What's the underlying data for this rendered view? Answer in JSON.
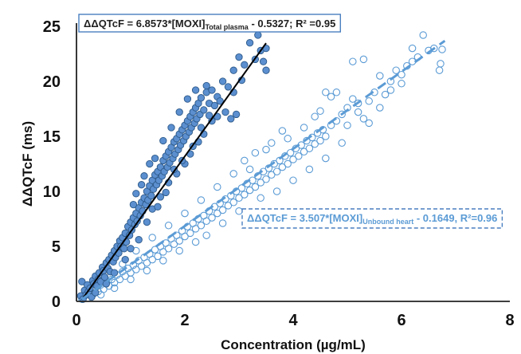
{
  "chart_data": {
    "type": "scatter",
    "xlabel": "Concentration (µg/mL)",
    "ylabel": "ΔΔQTcF (ms)",
    "xlim": [
      0,
      8
    ],
    "ylim": [
      0,
      25
    ],
    "x_ticks": [
      0,
      2,
      4,
      6,
      8
    ],
    "y_ticks": [
      0,
      5,
      10,
      15,
      20,
      25
    ],
    "grid": false,
    "annotations": [
      {
        "prefix": "ΔΔQTcF = 6.8573*[MOXI]",
        "subscript": "Total plasma",
        "suffix": " - 0.5327; R² =0.95",
        "position": "top-left",
        "color": "#1f1f1f",
        "border": "#4a7fc0",
        "border_style": "solid"
      },
      {
        "prefix": "ΔΔQTcF = 3.507*[MOXI]",
        "subscript": "Unbound heart",
        "suffix": " - 0.1649, R²=0.96",
        "position": "middle-right",
        "color": "#5b9bd5",
        "border": "#4a7fc0",
        "border_style": "dashed"
      }
    ],
    "series": [
      {
        "marker": "filled-circle",
        "color": "#5b8fcf",
        "edge": "#2e5a8a",
        "fit": {
          "slope": 6.8573,
          "intercept": -0.5327,
          "x_range": [
            0.1,
            3.5
          ],
          "line_color": "#000000",
          "line_style": "solid"
        },
        "points": [
          [
            0.08,
            0.5
          ],
          [
            0.1,
            1.8
          ],
          [
            0.12,
            0.2
          ],
          [
            0.15,
            1.0
          ],
          [
            0.18,
            0.6
          ],
          [
            0.2,
            1.5
          ],
          [
            0.22,
            0.9
          ],
          [
            0.25,
            1.2
          ],
          [
            0.28,
            0.4
          ],
          [
            0.3,
            1.9
          ],
          [
            0.32,
            1.6
          ],
          [
            0.35,
            2.3
          ],
          [
            0.38,
            1.4
          ],
          [
            0.4,
            2.0
          ],
          [
            0.42,
            2.6
          ],
          [
            0.45,
            1.8
          ],
          [
            0.48,
            3.1
          ],
          [
            0.5,
            2.8
          ],
          [
            0.52,
            2.2
          ],
          [
            0.55,
            3.5
          ],
          [
            0.58,
            3.0
          ],
          [
            0.6,
            3.8
          ],
          [
            0.62,
            2.7
          ],
          [
            0.65,
            4.2
          ],
          [
            0.68,
            3.6
          ],
          [
            0.7,
            4.6
          ],
          [
            0.72,
            4.0
          ],
          [
            0.75,
            5.0
          ],
          [
            0.78,
            4.4
          ],
          [
            0.8,
            5.5
          ],
          [
            0.82,
            5.0
          ],
          [
            0.85,
            5.8
          ],
          [
            0.88,
            4.8
          ],
          [
            0.9,
            6.2
          ],
          [
            0.92,
            5.4
          ],
          [
            0.95,
            6.8
          ],
          [
            0.98,
            6.0
          ],
          [
            1.0,
            7.2
          ],
          [
            1.02,
            6.5
          ],
          [
            1.05,
            7.6
          ],
          [
            1.08,
            7.0
          ],
          [
            1.1,
            8.0
          ],
          [
            1.12,
            7.3
          ],
          [
            1.15,
            8.5
          ],
          [
            1.18,
            7.8
          ],
          [
            1.2,
            9.0
          ],
          [
            1.22,
            8.2
          ],
          [
            1.25,
            9.4
          ],
          [
            1.28,
            8.8
          ],
          [
            1.3,
            10.0
          ],
          [
            1.32,
            9.2
          ],
          [
            1.35,
            10.5
          ],
          [
            1.38,
            9.6
          ],
          [
            1.4,
            11.0
          ],
          [
            1.42,
            10.2
          ],
          [
            1.45,
            11.5
          ],
          [
            1.48,
            10.6
          ],
          [
            1.5,
            11.8
          ],
          [
            1.52,
            11.0
          ],
          [
            1.55,
            12.2
          ],
          [
            1.58,
            11.4
          ],
          [
            1.6,
            12.8
          ],
          [
            1.62,
            11.8
          ],
          [
            1.65,
            13.2
          ],
          [
            1.68,
            12.2
          ],
          [
            1.7,
            13.6
          ],
          [
            1.72,
            12.6
          ],
          [
            1.75,
            14.0
          ],
          [
            1.78,
            13.0
          ],
          [
            1.8,
            14.5
          ],
          [
            1.82,
            13.4
          ],
          [
            1.85,
            14.8
          ],
          [
            1.88,
            13.8
          ],
          [
            1.9,
            15.2
          ],
          [
            1.92,
            14.2
          ],
          [
            1.95,
            15.6
          ],
          [
            1.98,
            14.6
          ],
          [
            2.0,
            16.0
          ],
          [
            2.02,
            15.0
          ],
          [
            2.05,
            16.4
          ],
          [
            2.08,
            15.4
          ],
          [
            2.1,
            16.8
          ],
          [
            2.12,
            15.8
          ],
          [
            2.15,
            17.2
          ],
          [
            2.18,
            16.2
          ],
          [
            2.2,
            17.6
          ],
          [
            2.22,
            16.6
          ],
          [
            2.25,
            18.0
          ],
          [
            2.28,
            17.0
          ],
          [
            2.3,
            18.5
          ],
          [
            2.35,
            17.4
          ],
          [
            2.4,
            19.0
          ],
          [
            2.45,
            18.0
          ],
          [
            2.5,
            19.2
          ],
          [
            2.55,
            17.8
          ],
          [
            2.6,
            18.6
          ],
          [
            2.7,
            20.0
          ],
          [
            2.8,
            19.5
          ],
          [
            2.9,
            21.0
          ],
          [
            3.0,
            22.2
          ],
          [
            3.1,
            21.5
          ],
          [
            3.2,
            23.5
          ],
          [
            3.3,
            22.0
          ],
          [
            3.35,
            24.2
          ],
          [
            3.4,
            22.8
          ],
          [
            3.45,
            21.8
          ],
          [
            3.5,
            23.0
          ],
          [
            3.5,
            21.0
          ],
          [
            1.3,
            7.2
          ],
          [
            1.4,
            8.4
          ],
          [
            1.55,
            9.5
          ],
          [
            1.7,
            10.8
          ],
          [
            1.85,
            11.6
          ],
          [
            2.0,
            12.5
          ],
          [
            2.1,
            13.4
          ],
          [
            2.25,
            14.5
          ],
          [
            2.35,
            15.2
          ],
          [
            2.5,
            16.4
          ],
          [
            2.6,
            16.8
          ],
          [
            2.75,
            17.2
          ],
          [
            2.85,
            16.6
          ],
          [
            2.95,
            17.0
          ],
          [
            1.1,
            9.8
          ],
          [
            1.25,
            11.4
          ],
          [
            1.45,
            13.0
          ],
          [
            1.6,
            14.6
          ],
          [
            1.75,
            15.8
          ],
          [
            1.9,
            17.2
          ],
          [
            2.05,
            18.4
          ],
          [
            2.2,
            19.2
          ],
          [
            2.4,
            19.6
          ],
          [
            0.9,
            3.8
          ],
          [
            1.0,
            4.8
          ],
          [
            1.15,
            5.6
          ],
          [
            0.7,
            2.6
          ],
          [
            0.55,
            1.6
          ],
          [
            0.35,
            0.8
          ],
          [
            1.5,
            8.6
          ],
          [
            1.65,
            9.9
          ],
          [
            1.8,
            12.0
          ],
          [
            1.95,
            12.8
          ],
          [
            2.15,
            14.1
          ],
          [
            2.3,
            15.8
          ],
          [
            2.45,
            16.9
          ],
          [
            2.65,
            18.2
          ],
          [
            2.9,
            19.0
          ],
          [
            3.05,
            20.1
          ],
          [
            1.35,
            12.5
          ],
          [
            1.2,
            10.6
          ],
          [
            1.05,
            8.8
          ]
        ]
      },
      {
        "marker": "open-circle",
        "color": "#5b9bd5",
        "edge": "#5b9bd5",
        "fit": {
          "slope": 3.507,
          "intercept": -0.1649,
          "x_range": [
            0.1,
            6.8
          ],
          "line_color": "#5b9bd5",
          "line_style": "dashed"
        },
        "points": [
          [
            0.1,
            0.2
          ],
          [
            0.15,
            0.5
          ],
          [
            0.2,
            0.3
          ],
          [
            0.25,
            0.9
          ],
          [
            0.3,
            0.6
          ],
          [
            0.35,
            1.2
          ],
          [
            0.4,
            0.9
          ],
          [
            0.45,
            1.5
          ],
          [
            0.5,
            1.1
          ],
          [
            0.55,
            1.8
          ],
          [
            0.6,
            1.4
          ],
          [
            0.65,
            2.0
          ],
          [
            0.7,
            1.7
          ],
          [
            0.75,
            2.4
          ],
          [
            0.8,
            2.0
          ],
          [
            0.85,
            2.7
          ],
          [
            0.9,
            2.3
          ],
          [
            0.95,
            3.0
          ],
          [
            1.0,
            2.6
          ],
          [
            1.05,
            3.3
          ],
          [
            1.1,
            2.9
          ],
          [
            1.15,
            3.7
          ],
          [
            1.2,
            3.2
          ],
          [
            1.25,
            4.0
          ],
          [
            1.3,
            3.5
          ],
          [
            1.35,
            4.3
          ],
          [
            1.4,
            3.8
          ],
          [
            1.45,
            4.7
          ],
          [
            1.5,
            4.1
          ],
          [
            1.55,
            5.0
          ],
          [
            1.6,
            4.5
          ],
          [
            1.65,
            5.3
          ],
          [
            1.7,
            4.8
          ],
          [
            1.75,
            5.7
          ],
          [
            1.8,
            5.2
          ],
          [
            1.85,
            6.0
          ],
          [
            1.9,
            5.5
          ],
          [
            1.95,
            6.4
          ],
          [
            2.0,
            5.9
          ],
          [
            2.05,
            6.8
          ],
          [
            2.1,
            6.2
          ],
          [
            2.15,
            7.1
          ],
          [
            2.2,
            6.6
          ],
          [
            2.25,
            7.5
          ],
          [
            2.3,
            6.9
          ],
          [
            2.35,
            7.8
          ],
          [
            2.4,
            7.3
          ],
          [
            2.45,
            8.2
          ],
          [
            2.5,
            7.6
          ],
          [
            2.55,
            8.6
          ],
          [
            2.6,
            8.0
          ],
          [
            2.65,
            8.9
          ],
          [
            2.7,
            8.3
          ],
          [
            2.75,
            9.3
          ],
          [
            2.8,
            8.7
          ],
          [
            2.85,
            9.6
          ],
          [
            2.9,
            9.0
          ],
          [
            2.95,
            10.0
          ],
          [
            3.0,
            9.4
          ],
          [
            3.05,
            10.3
          ],
          [
            3.1,
            9.7
          ],
          [
            3.15,
            10.7
          ],
          [
            3.2,
            10.1
          ],
          [
            3.25,
            11.0
          ],
          [
            3.3,
            10.4
          ],
          [
            3.35,
            11.4
          ],
          [
            3.4,
            10.8
          ],
          [
            3.45,
            11.8
          ],
          [
            3.5,
            11.1
          ],
          [
            3.55,
            12.1
          ],
          [
            3.6,
            11.5
          ],
          [
            3.65,
            12.5
          ],
          [
            3.7,
            11.8
          ],
          [
            3.75,
            12.8
          ],
          [
            3.8,
            12.2
          ],
          [
            3.85,
            13.2
          ],
          [
            3.9,
            12.5
          ],
          [
            3.95,
            13.5
          ],
          [
            4.0,
            12.9
          ],
          [
            4.05,
            13.9
          ],
          [
            4.1,
            13.2
          ],
          [
            4.15,
            14.2
          ],
          [
            4.2,
            13.6
          ],
          [
            4.25,
            14.6
          ],
          [
            4.3,
            13.9
          ],
          [
            4.35,
            14.9
          ],
          [
            4.4,
            14.3
          ],
          [
            4.45,
            15.3
          ],
          [
            4.5,
            14.6
          ],
          [
            4.55,
            15.6
          ],
          [
            4.6,
            15.0
          ],
          [
            4.7,
            16.0
          ],
          [
            4.8,
            16.4
          ],
          [
            4.9,
            17.0
          ],
          [
            5.0,
            17.6
          ],
          [
            5.1,
            18.4
          ],
          [
            5.2,
            18.0
          ],
          [
            5.3,
            16.6
          ],
          [
            5.4,
            16.2
          ],
          [
            5.5,
            19.0
          ],
          [
            5.6,
            20.5
          ],
          [
            5.7,
            18.8
          ],
          [
            5.8,
            20.0
          ],
          [
            5.9,
            21.0
          ],
          [
            6.0,
            19.8
          ],
          [
            6.1,
            21.4
          ],
          [
            6.2,
            23.0
          ],
          [
            6.3,
            22.2
          ],
          [
            6.4,
            24.2
          ],
          [
            6.5,
            22.8
          ],
          [
            6.6,
            23.0
          ],
          [
            6.7,
            21.0
          ],
          [
            6.72,
            21.6
          ],
          [
            6.75,
            22.9
          ],
          [
            4.6,
            19.0
          ],
          [
            4.8,
            19.0
          ],
          [
            5.3,
            22.0
          ],
          [
            5.1,
            21.8
          ],
          [
            4.5,
            17.3
          ],
          [
            4.7,
            18.6
          ],
          [
            3.1,
            12.8
          ],
          [
            3.3,
            13.5
          ],
          [
            3.6,
            14.4
          ],
          [
            3.9,
            14.8
          ],
          [
            4.2,
            15.8
          ],
          [
            4.4,
            16.8
          ],
          [
            2.9,
            11.6
          ],
          [
            2.6,
            10.4
          ],
          [
            2.3,
            9.2
          ],
          [
            2.0,
            8.0
          ],
          [
            1.7,
            6.9
          ],
          [
            1.4,
            5.8
          ],
          [
            1.1,
            4.6
          ],
          [
            0.85,
            3.4
          ],
          [
            3.4,
            9.4
          ],
          [
            3.7,
            10.0
          ],
          [
            4.0,
            11.0
          ],
          [
            4.3,
            12.0
          ],
          [
            4.6,
            13.0
          ],
          [
            4.9,
            14.4
          ],
          [
            3.0,
            8.2
          ],
          [
            2.7,
            7.1
          ],
          [
            2.4,
            6.0
          ],
          [
            2.2,
            5.4
          ],
          [
            1.9,
            4.6
          ],
          [
            1.6,
            3.7
          ],
          [
            1.3,
            2.8
          ],
          [
            1.0,
            2.0
          ],
          [
            0.7,
            1.2
          ],
          [
            0.45,
            0.6
          ],
          [
            5.0,
            16.0
          ],
          [
            5.2,
            17.2
          ],
          [
            5.4,
            18.2
          ],
          [
            5.6,
            17.6
          ],
          [
            5.8,
            19.2
          ],
          [
            6.0,
            20.6
          ],
          [
            6.2,
            21.8
          ],
          [
            3.8,
            15.5
          ],
          [
            3.5,
            13.8
          ],
          [
            3.2,
            12.0
          ]
        ]
      }
    ]
  }
}
